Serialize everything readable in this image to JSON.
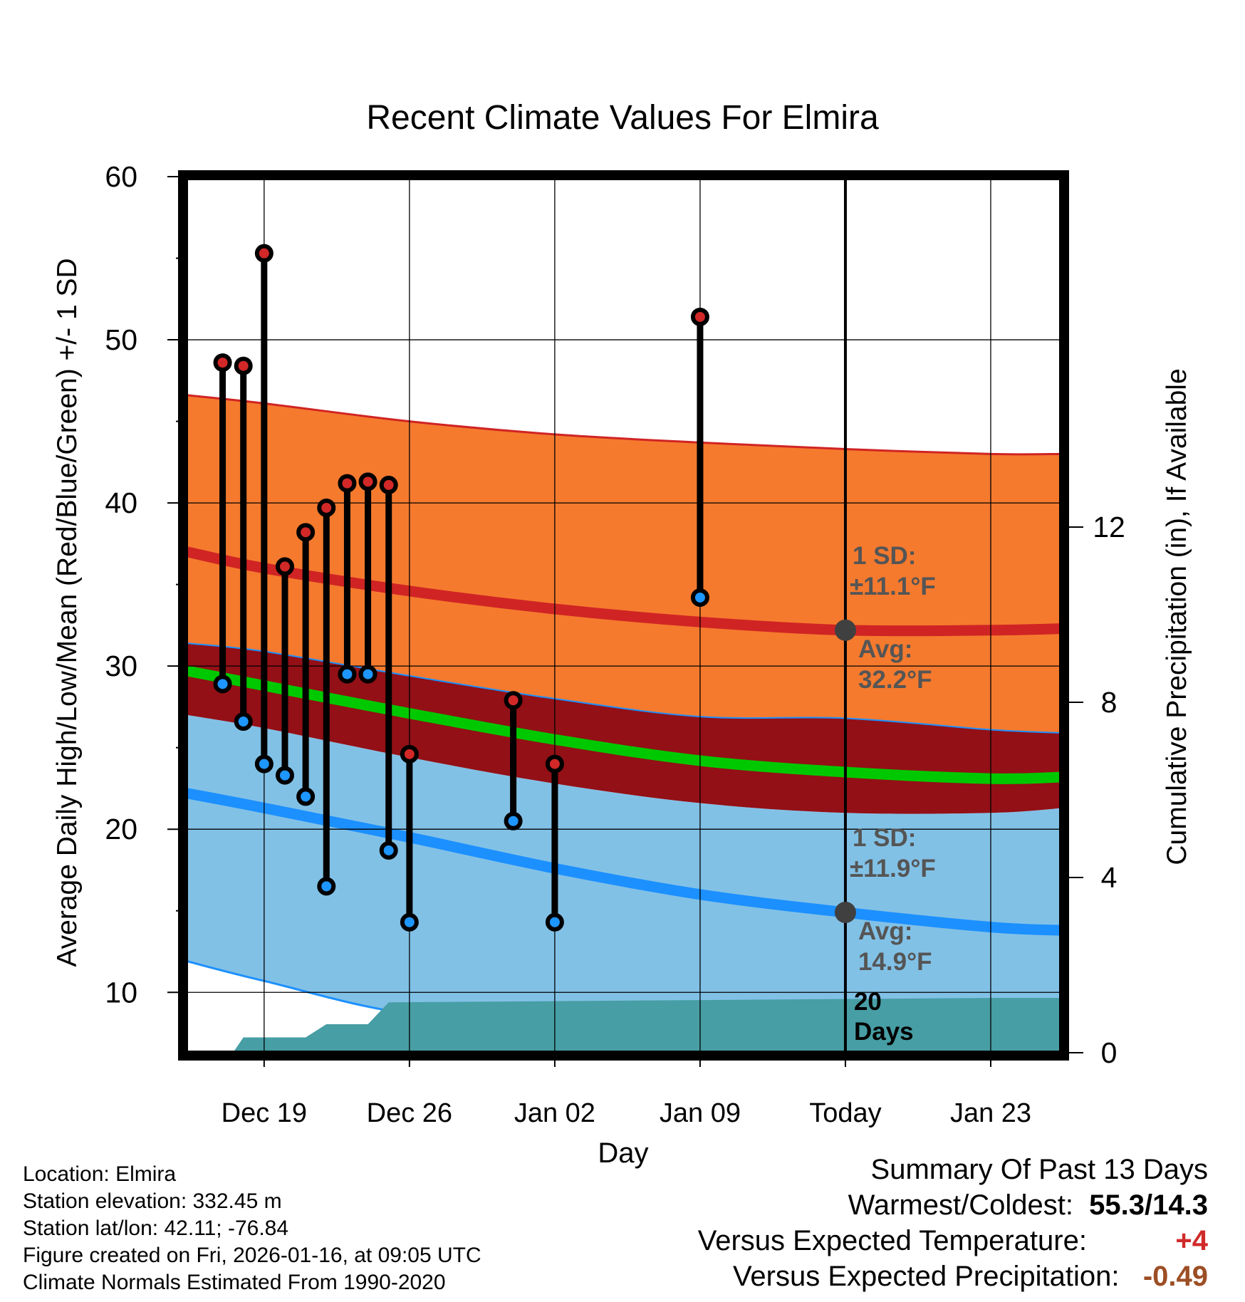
{
  "chart_data": {
    "type": "line",
    "title": "Recent Climate Values For Elmira",
    "xlabel": "Day",
    "ylabel": "Average Daily High/Low/Mean (Red/Blue/Green) +/- 1 SD",
    "y2label": "Cumulative Precipitation (in), If Available",
    "xlim": [
      -3.7,
      38.5
    ],
    "ylim": [
      6.3,
      60
    ],
    "y2lim": [
      0,
      20
    ],
    "x_ticks": [
      {
        "x": 0,
        "label": "Dec 19"
      },
      {
        "x": 7,
        "label": "Dec 26"
      },
      {
        "x": 14,
        "label": "Jan 02"
      },
      {
        "x": 21,
        "label": "Jan 09"
      },
      {
        "x": 28,
        "label": "Today"
      },
      {
        "x": 35,
        "label": "Jan 23"
      }
    ],
    "y_ticks": [
      10,
      20,
      30,
      40,
      50,
      60
    ],
    "y2_ticks": [
      0,
      4,
      8,
      12
    ],
    "normals": {
      "x": [
        -3.7,
        0,
        7,
        14,
        21,
        28,
        35,
        38.5
      ],
      "high_avg": [
        37.0,
        36.0,
        34.6,
        33.5,
        32.7,
        32.2,
        32.2,
        32.3
      ],
      "high_sd_upper": [
        46.6,
        46.1,
        45.0,
        44.2,
        43.7,
        43.3,
        43.0,
        43.0
      ],
      "high_sd_lower": [
        31.4,
        30.9,
        29.4,
        28.0,
        26.9,
        26.8,
        26.1,
        25.9
      ],
      "mean": [
        29.7,
        28.8,
        27.1,
        25.5,
        24.2,
        23.5,
        23.1,
        23.2
      ],
      "low_avg": [
        22.2,
        21.3,
        19.5,
        17.6,
        16.0,
        14.9,
        14.0,
        13.8
      ],
      "low_sd_upper": [
        27.0,
        26.2,
        24.4,
        22.8,
        21.6,
        21.0,
        21.0,
        21.3
      ],
      "low_sd_lower": [
        11.9,
        10.7,
        8.7,
        8.7,
        8.7,
        8.7,
        8.7,
        8.7
      ]
    },
    "observed": [
      {
        "x": -2,
        "high": 48.6,
        "low": 28.9
      },
      {
        "x": -1,
        "high": 48.4,
        "low": 26.6
      },
      {
        "x": 0,
        "high": 55.3,
        "low": 24.0
      },
      {
        "x": 1,
        "high": 36.1,
        "low": 23.3
      },
      {
        "x": 2,
        "high": 38.2,
        "low": 22.0
      },
      {
        "x": 3,
        "high": 39.7,
        "low": 16.5
      },
      {
        "x": 4,
        "high": 41.2,
        "low": 29.5
      },
      {
        "x": 5,
        "high": 41.3,
        "low": 29.5
      },
      {
        "x": 6,
        "high": 41.1,
        "low": 18.7
      },
      {
        "x": 7,
        "high": 24.6,
        "low": 14.3
      },
      {
        "x": 12,
        "high": 27.9,
        "low": 20.5
      },
      {
        "x": 14,
        "high": 24.0,
        "low": 14.3
      },
      {
        "x": 21,
        "high": 51.4,
        "low": 34.2
      }
    ],
    "precip_normal": {
      "x": [
        -3.7,
        -1.5,
        -1,
        2,
        3,
        5,
        6,
        35,
        38.5
      ],
      "values": [
        0,
        0,
        0.35,
        0.35,
        0.65,
        0.65,
        1.15,
        1.25,
        1.25
      ]
    },
    "annotations": {
      "high_sd_line1": "1 SD:",
      "high_sd_line2": "±11.1°F",
      "high_avg_line1": "Avg:",
      "high_avg_line2": "32.2°F",
      "high_avg_value": 32.2,
      "low_sd_line1": "1 SD:",
      "low_sd_line2": "±11.9°F",
      "low_avg_line1": "Avg:",
      "low_avg_line2": "14.9°F",
      "low_avg_value": 14.9,
      "days_line1": "20",
      "days_line2": "Days"
    },
    "colors": {
      "high_band": "#f57a2e",
      "high_line": "#d02424",
      "overlap_band": "#921016",
      "mean_line": "#00c800",
      "low_band": "#82c1e6",
      "low_line": "#1c90ff",
      "precip": "#479ea5",
      "label": "#555555",
      "high_dot": "#d22828",
      "low_dot": "#1e96ff"
    }
  },
  "info": {
    "location": "Location: Elmira",
    "elevation": "Station elevation: 332.45 m",
    "latlon": "Station lat/lon: 42.11; -76.84",
    "created": "Figure created on Fri, 2026-01-16, at 09:05 UTC",
    "normals": "Climate Normals Estimated From 1990-2020"
  },
  "summary": {
    "title": "Summary Of Past 13 Days",
    "warm_cold_label": "Warmest/Coldest:",
    "warm_cold_value": "55.3/14.3",
    "temp_label": "Versus Expected Temperature:",
    "temp_value": "+4",
    "temp_color": "#d12a2a",
    "precip_label": "Versus Expected Precipitation:",
    "precip_value": "-0.49",
    "precip_color": "#9c4e24"
  }
}
